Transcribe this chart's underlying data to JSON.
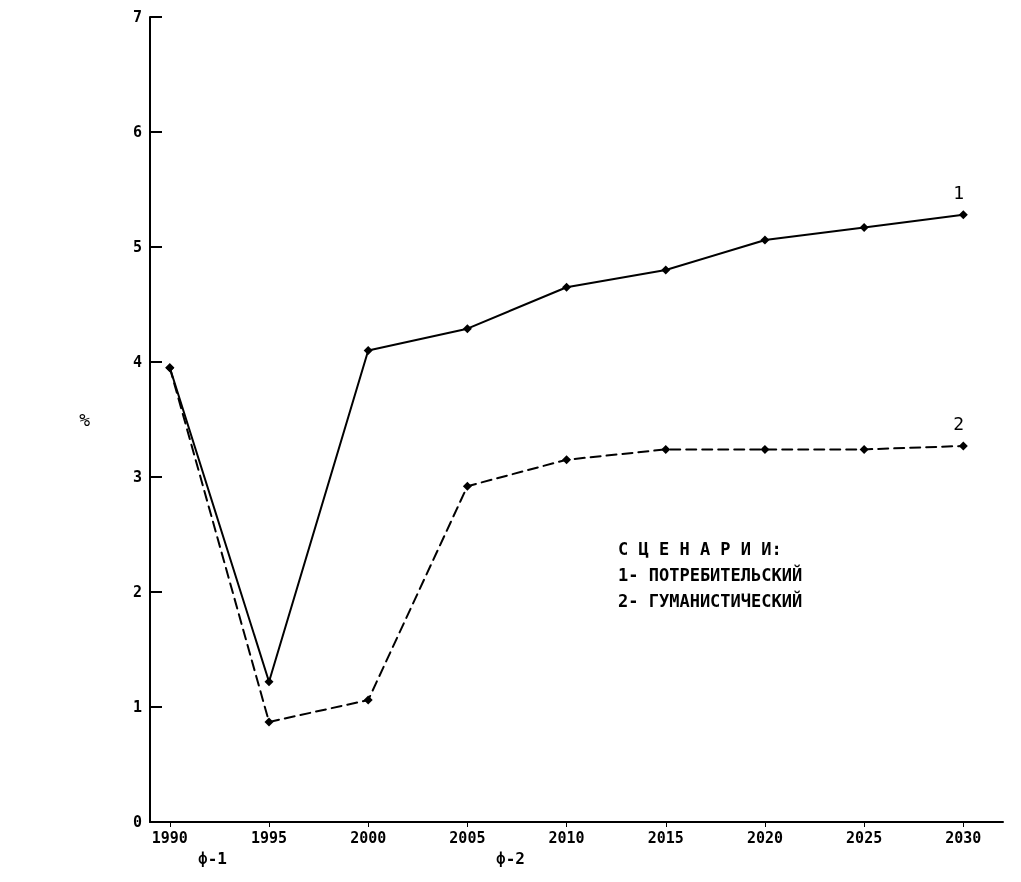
{
  "chart_data": {
    "type": "line",
    "ylabel": "%",
    "x": [
      1990,
      1995,
      2000,
      2005,
      2010,
      2015,
      2020,
      2025,
      2030
    ],
    "series": [
      {
        "name": "1",
        "color": "#000000",
        "line_style": "solid",
        "values": [
          3.95,
          1.22,
          4.1,
          4.29,
          4.65,
          4.8,
          5.06,
          5.17,
          5.28
        ]
      },
      {
        "name": "2",
        "color": "#000000",
        "line_style": "dashed",
        "values": [
          3.95,
          0.87,
          1.06,
          2.92,
          3.15,
          3.24,
          3.24,
          3.24,
          3.27
        ]
      }
    ],
    "xlim": [
      1989,
      2032
    ],
    "xticks": [
      1990,
      1995,
      2000,
      2005,
      2010,
      2015,
      2020,
      2025,
      2030
    ],
    "ylim": [
      0,
      7
    ],
    "yticks": [
      0,
      1,
      2,
      3,
      4,
      5,
      6,
      7
    ],
    "marker": "diamond",
    "grid": false,
    "legend": false,
    "annotations": [
      "С Ц Е Н А Р И И:",
      "1- ПОТРЕБИТЕЛЬСКИЙ",
      "2- ГУМАНИСТИЧЕСКИЙ",
      "ф-1",
      "ф-2"
    ]
  }
}
